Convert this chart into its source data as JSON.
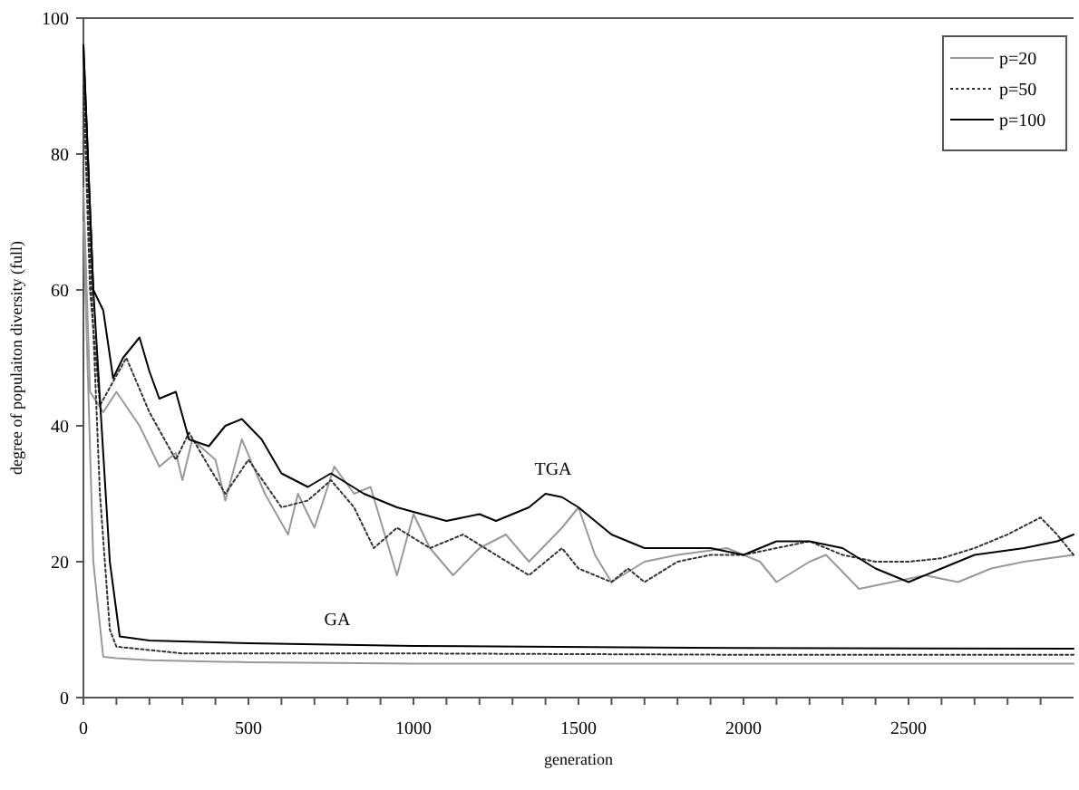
{
  "chart_data": {
    "type": "line",
    "xlabel": "generation",
    "ylabel": "degree of populaiton diversity (full)",
    "xlim": [
      0,
      3000
    ],
    "ylim": [
      0,
      100
    ],
    "xticks": [
      0,
      {
        "value": 100,
        "label": null
      },
      {
        "value": 200,
        "label": null
      },
      {
        "value": 300,
        "label": null
      },
      {
        "value": 400,
        "label": null
      },
      500,
      {
        "value": 600,
        "label": null
      },
      {
        "value": 700,
        "label": null
      },
      {
        "value": 800,
        "label": null
      },
      {
        "value": 900,
        "label": null
      },
      1000,
      {
        "value": 1100,
        "label": null
      },
      {
        "value": 1200,
        "label": null
      },
      {
        "value": 1300,
        "label": null
      },
      {
        "value": 1400,
        "label": null
      },
      1500,
      {
        "value": 1600,
        "label": null
      },
      {
        "value": 1700,
        "label": null
      },
      {
        "value": 1800,
        "label": null
      },
      {
        "value": 1900,
        "label": null
      },
      2000,
      {
        "value": 2100,
        "label": null
      },
      {
        "value": 2200,
        "label": null
      },
      {
        "value": 2300,
        "label": null
      },
      {
        "value": 2400,
        "label": null
      },
      2500,
      {
        "value": 2600,
        "label": null
      },
      {
        "value": 2700,
        "label": null
      },
      {
        "value": 2800,
        "label": null
      },
      {
        "value": 2900,
        "label": null
      }
    ],
    "yticks": [
      0,
      20,
      40,
      60,
      80,
      100
    ],
    "grid": false,
    "legend": "top right",
    "annotations": [
      "TGA",
      "GA"
    ],
    "series": [
      {
        "name": "p=20",
        "color": "#999999",
        "line_style": "solid",
        "x": [
          0,
          20,
          60,
          100,
          170,
          230,
          280,
          300,
          330,
          400,
          430,
          480,
          550,
          620,
          650,
          700,
          760,
          820,
          870,
          950,
          1000,
          1050,
          1120,
          1200,
          1280,
          1350,
          1450,
          1500,
          1550,
          1600,
          1700,
          1800,
          1950,
          2050,
          2100,
          2200,
          2250,
          2350,
          2450,
          2550,
          2650,
          2750,
          2850,
          3000
        ],
        "values": [
          75,
          45,
          42,
          45,
          40,
          34,
          36,
          32,
          38,
          35,
          29,
          38,
          30,
          24,
          30,
          25,
          34,
          30,
          31,
          18,
          27,
          22,
          18,
          22,
          24,
          20,
          25,
          28,
          21,
          17,
          20,
          21,
          22,
          20,
          17,
          20,
          21,
          16,
          17,
          18,
          17,
          19,
          20,
          21
        ]
      },
      {
        "name": "p=50",
        "color": "#333333",
        "line_style": "dotted",
        "x": [
          0,
          20,
          50,
          130,
          200,
          280,
          320,
          380,
          430,
          500,
          600,
          680,
          750,
          820,
          880,
          950,
          1050,
          1150,
          1250,
          1350,
          1450,
          1500,
          1600,
          1650,
          1700,
          1800,
          1900,
          2000,
          2100,
          2200,
          2300,
          2400,
          2500,
          2600,
          2700,
          2800,
          2900,
          2950,
          3000
        ],
        "values": [
          90,
          60,
          43,
          50,
          42,
          35,
          39,
          34,
          30,
          35,
          28,
          29,
          32,
          28,
          22,
          25,
          22,
          24,
          21,
          18,
          22,
          19,
          17,
          19,
          17,
          20,
          21,
          21,
          22,
          23,
          21,
          20,
          20,
          20.5,
          22,
          24,
          26.5,
          24,
          21
        ]
      },
      {
        "name": "p=100",
        "color": "#000000",
        "line_style": "solid",
        "x": [
          0,
          30,
          60,
          90,
          120,
          170,
          200,
          230,
          280,
          320,
          380,
          430,
          480,
          540,
          600,
          680,
          750,
          850,
          950,
          1100,
          1200,
          1250,
          1350,
          1400,
          1450,
          1500,
          1600,
          1700,
          1800,
          1900,
          2000,
          2100,
          2200,
          2300,
          2400,
          2500,
          2600,
          2700,
          2850,
          2950,
          3000
        ],
        "values": [
          96,
          60,
          57,
          47,
          50,
          53,
          48,
          44,
          45,
          38,
          37,
          40,
          41,
          38,
          33,
          31,
          33,
          30,
          28,
          26,
          27,
          26,
          28,
          30,
          29.5,
          28,
          24,
          22,
          22,
          22,
          21,
          23,
          23,
          22,
          19,
          17,
          19,
          21,
          22,
          23,
          24
        ]
      },
      {
        "color": "#999999",
        "line_style": "solid",
        "x": [
          0,
          30,
          60,
          100,
          200,
          500,
          1000,
          2000,
          3000
        ],
        "values": [
          70,
          20,
          6,
          5.8,
          5.5,
          5.2,
          5,
          5,
          5
        ]
      },
      {
        "color": "#333333",
        "line_style": "dotted",
        "x": [
          0,
          50,
          80,
          100,
          300,
          1000,
          2000,
          3000
        ],
        "values": [
          90,
          30,
          10,
          7.5,
          6.5,
          6.5,
          6.3,
          6.3
        ]
      },
      {
        "color": "#000000",
        "line_style": "solid",
        "x": [
          0,
          30,
          80,
          110,
          200,
          500,
          1000,
          2000,
          3000
        ],
        "values": [
          96,
          60,
          20,
          9,
          8.4,
          8,
          7.6,
          7.3,
          7.2
        ]
      }
    ]
  }
}
